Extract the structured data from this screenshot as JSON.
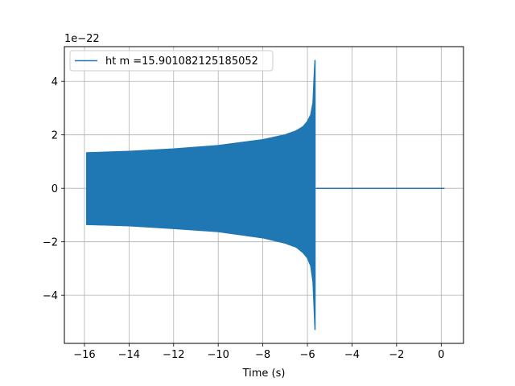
{
  "chart_data": {
    "type": "line",
    "title": "",
    "xlabel": "Time (s)",
    "ylabel": "",
    "y_offset_text": "1e−22",
    "xlim": [
      -16.9,
      1.0
    ],
    "ylim": [
      -5.8,
      5.3
    ],
    "grid": true,
    "legend_position": "top-left",
    "x_ticks": [
      -16,
      -14,
      -12,
      -10,
      -8,
      -6,
      -4,
      -2,
      0
    ],
    "x_tick_labels": [
      "−16",
      "−14",
      "−12",
      "−10",
      "−8",
      "−6",
      "−4",
      "−2",
      "0"
    ],
    "y_ticks": [
      -4,
      -2,
      0,
      2,
      4
    ],
    "y_tick_labels": [
      "−4",
      "−2",
      "0",
      "2",
      "4"
    ],
    "series": [
      {
        "name": "ht m =15.901082125185052",
        "color": "#1f77b4",
        "envelope": {
          "x": [
            -15.9,
            -14.0,
            -12.0,
            -10.0,
            -8.0,
            -7.0,
            -6.5,
            -6.2,
            -6.0,
            -5.85,
            -5.75,
            -5.7,
            -5.66
          ],
          "upper": [
            1.33,
            1.38,
            1.47,
            1.6,
            1.82,
            2.0,
            2.15,
            2.3,
            2.5,
            2.75,
            3.2,
            4.1,
            4.8
          ],
          "lower": [
            -1.35,
            -1.4,
            -1.5,
            -1.62,
            -1.85,
            -2.05,
            -2.2,
            -2.4,
            -2.6,
            -2.9,
            -3.5,
            -4.4,
            -5.3
          ]
        },
        "zero_segment": {
          "x": [
            -5.62,
            0.15
          ],
          "y": [
            0,
            0
          ]
        }
      }
    ]
  }
}
